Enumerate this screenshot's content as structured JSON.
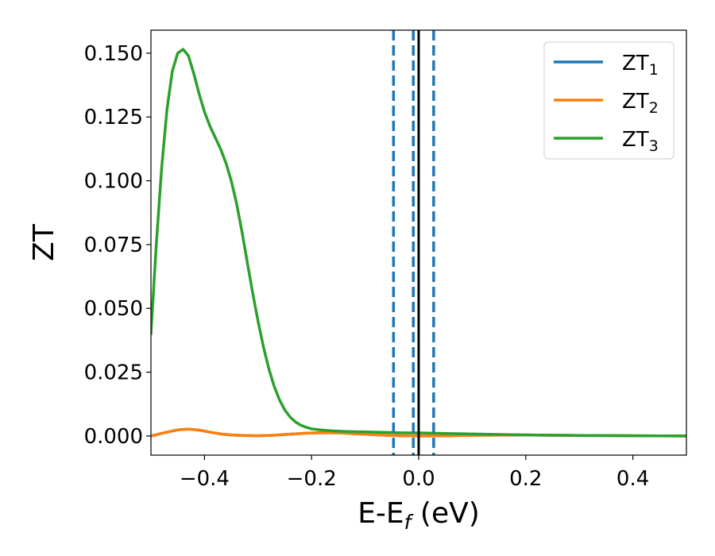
{
  "chart_data": {
    "type": "line",
    "xlabel": "E-E",
    "xlabel_sub": "f",
    "xlabel_unit": " (eV)",
    "ylabel": "ZT",
    "xlim": [
      -0.5,
      0.5
    ],
    "ylim": [
      -0.0075,
      0.159
    ],
    "x_ticks": [
      -0.4,
      -0.2,
      0.0,
      0.2,
      0.4
    ],
    "x_tick_labels": [
      "−0.4",
      "−0.2",
      "0.0",
      "0.2",
      "0.4"
    ],
    "y_ticks": [
      0.0,
      0.025,
      0.05,
      0.075,
      0.1,
      0.125,
      0.15
    ],
    "y_tick_labels": [
      "0.000",
      "0.025",
      "0.050",
      "0.075",
      "0.100",
      "0.125",
      "0.150"
    ],
    "grid": false,
    "legend_position": "top-right",
    "vertical_lines": [
      {
        "x": -0.047,
        "style": "dashed",
        "color": "#1f77b4"
      },
      {
        "x": -0.01,
        "style": "dashed",
        "color": "#1f77b4"
      },
      {
        "x": 0.028,
        "style": "dashed",
        "color": "#1f77b4"
      },
      {
        "x": 0.0,
        "style": "solid",
        "color": "#000000"
      }
    ],
    "series": [
      {
        "name": "ZT",
        "name_sub": "1",
        "color": "#1f77b4",
        "x": [
          -0.5,
          -0.49,
          -0.47,
          -0.45,
          -0.43,
          -0.41,
          -0.39,
          -0.37,
          -0.35,
          -0.33,
          -0.3,
          -0.27,
          -0.24,
          -0.21,
          -0.18,
          -0.15,
          -0.12,
          -0.09,
          -0.06,
          -0.03,
          0.0,
          0.05,
          0.1,
          0.2,
          0.3,
          0.4,
          0.5
        ],
        "y": [
          0.0,
          0.0005,
          0.0015,
          0.0024,
          0.0027,
          0.0023,
          0.0015,
          0.0008,
          0.0004,
          0.0002,
          0.0001,
          0.0003,
          0.0007,
          0.0011,
          0.0013,
          0.0012,
          0.0009,
          0.0006,
          0.0003,
          0.0001,
          0.0,
          0.0001,
          0.0003,
          0.0004,
          0.0002,
          0.0001,
          0.0
        ]
      },
      {
        "name": "ZT",
        "name_sub": "2",
        "color": "#ff7f0e",
        "x": [
          -0.5,
          -0.49,
          -0.47,
          -0.45,
          -0.43,
          -0.41,
          -0.39,
          -0.37,
          -0.35,
          -0.33,
          -0.3,
          -0.27,
          -0.24,
          -0.21,
          -0.18,
          -0.15,
          -0.12,
          -0.09,
          -0.06,
          -0.03,
          0.0,
          0.05,
          0.1,
          0.2,
          0.3,
          0.4,
          0.5
        ],
        "y": [
          0.0,
          0.0005,
          0.0015,
          0.0024,
          0.0027,
          0.0023,
          0.0015,
          0.0008,
          0.0004,
          0.0002,
          0.0001,
          0.0003,
          0.0007,
          0.0011,
          0.0013,
          0.0012,
          0.0009,
          0.0006,
          0.0003,
          0.0001,
          0.0,
          0.0001,
          0.0003,
          0.0004,
          0.0002,
          0.0001,
          0.0
        ]
      },
      {
        "name": "ZT",
        "name_sub": "3",
        "color": "#2ca02c",
        "x": [
          -0.5,
          -0.49,
          -0.48,
          -0.47,
          -0.46,
          -0.45,
          -0.44,
          -0.43,
          -0.42,
          -0.41,
          -0.4,
          -0.39,
          -0.38,
          -0.37,
          -0.36,
          -0.35,
          -0.34,
          -0.33,
          -0.32,
          -0.31,
          -0.3,
          -0.29,
          -0.28,
          -0.27,
          -0.26,
          -0.25,
          -0.24,
          -0.23,
          -0.22,
          -0.21,
          -0.2,
          -0.18,
          -0.16,
          -0.14,
          -0.12,
          -0.1,
          -0.08,
          -0.06,
          -0.04,
          -0.02,
          0.0,
          0.05,
          0.1,
          0.15,
          0.2,
          0.3,
          0.4,
          0.5
        ],
        "y": [
          0.04,
          0.075,
          0.105,
          0.128,
          0.143,
          0.15,
          0.1515,
          0.149,
          0.142,
          0.134,
          0.127,
          0.1215,
          0.117,
          0.1125,
          0.107,
          0.1,
          0.091,
          0.08,
          0.068,
          0.056,
          0.045,
          0.035,
          0.0265,
          0.0195,
          0.0142,
          0.0102,
          0.0074,
          0.0055,
          0.0042,
          0.0034,
          0.0028,
          0.0023,
          0.002,
          0.0018,
          0.0017,
          0.0016,
          0.0015,
          0.0014,
          0.0013,
          0.0012,
          0.0012,
          0.001,
          0.0008,
          0.0006,
          0.0004,
          0.0002,
          0.0001,
          0.0
        ]
      }
    ]
  }
}
